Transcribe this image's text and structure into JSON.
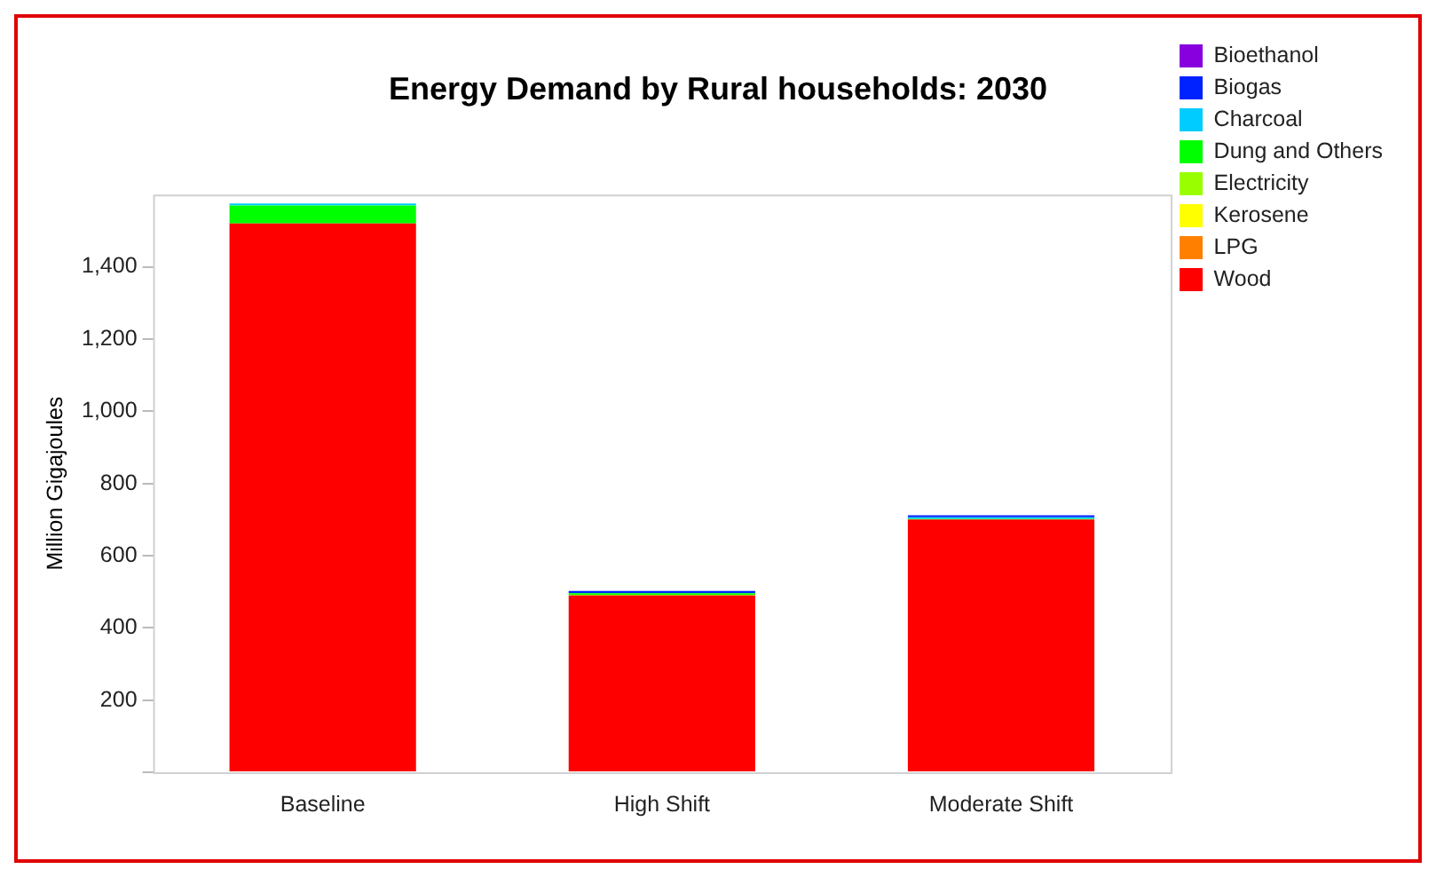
{
  "chart_data": {
    "type": "bar",
    "title": "Energy Demand by Rural households: 2030",
    "ylabel": "Million Gigajoules",
    "categories": [
      "Baseline",
      "High Shift",
      "Moderate Shift"
    ],
    "stacked": true,
    "ylim": [
      0,
      1600
    ],
    "yticks": [
      {
        "value": 0,
        "label": null
      },
      {
        "value": 200,
        "label": "200"
      },
      {
        "value": 400,
        "label": "400"
      },
      {
        "value": 600,
        "label": "600"
      },
      {
        "value": 800,
        "label": "800"
      },
      {
        "value": 1000,
        "label": "1,000"
      },
      {
        "value": 1200,
        "label": "1,200"
      },
      {
        "value": 1400,
        "label": "1,400"
      }
    ],
    "grid": false,
    "legend": "right",
    "series": [
      {
        "name": "Wood",
        "color": "#ff0000",
        "values": [
          1520,
          490,
          700
        ]
      },
      {
        "name": "LPG",
        "color": "#ff8000",
        "values": [
          0,
          0,
          0
        ]
      },
      {
        "name": "Kerosene",
        "color": "#ffff00",
        "values": [
          0,
          0,
          0
        ]
      },
      {
        "name": "Electricity",
        "color": "#99ff00",
        "values": [
          0,
          2,
          0
        ]
      },
      {
        "name": "Dung and Others",
        "color": "#00ff00",
        "values": [
          50,
          4,
          2
        ]
      },
      {
        "name": "Charcoal",
        "color": "#00ccff",
        "values": [
          5,
          0,
          4
        ]
      },
      {
        "name": "Biogas",
        "color": "#0022ff",
        "values": [
          0,
          6,
          6
        ]
      },
      {
        "name": "Bioethanol",
        "color": "#8800dd",
        "values": [
          0,
          0,
          0
        ]
      }
    ]
  }
}
